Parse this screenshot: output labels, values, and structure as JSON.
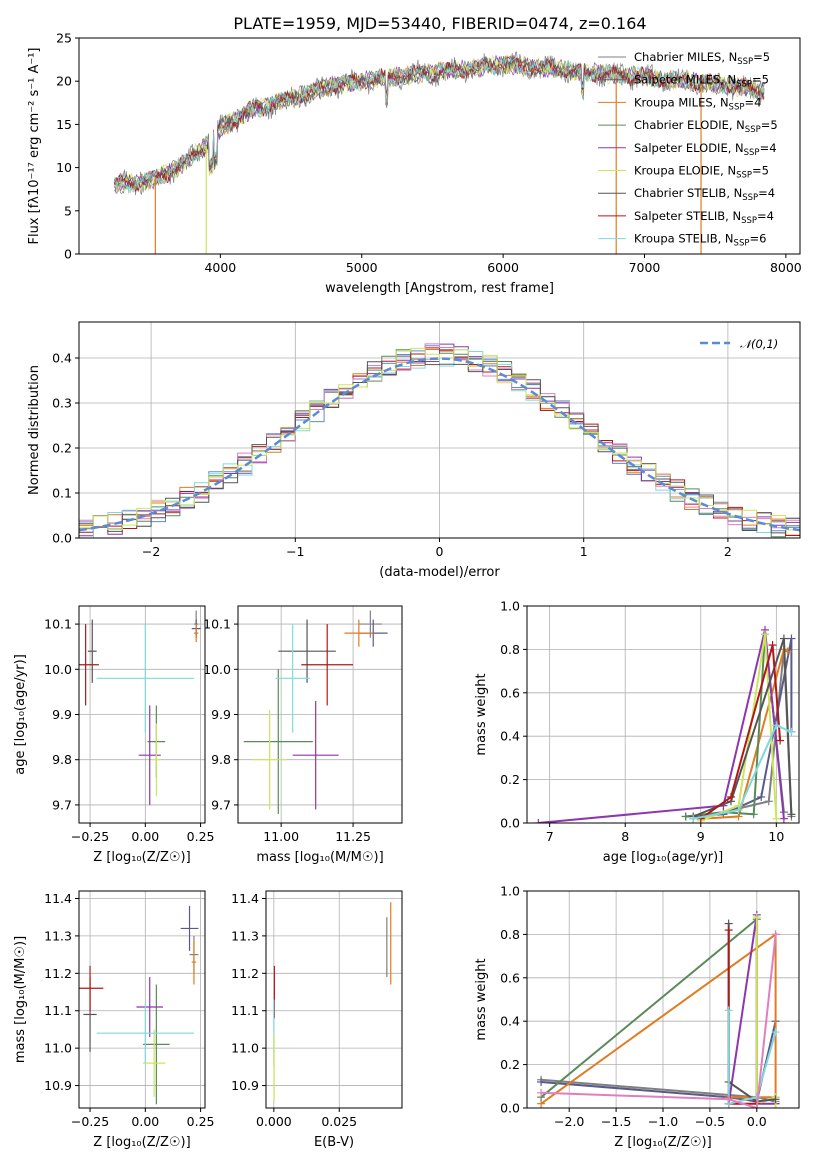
{
  "figure": {
    "title": "PLATE=1959, MJD=53440, FIBERID=0474, z=0.164"
  },
  "series": [
    {
      "name": "Chabrier MILES",
      "nssp": 5,
      "color": "#808080"
    },
    {
      "name": "Salpeter MILES",
      "nssp": 5,
      "color": "#5a5a8a"
    },
    {
      "name": "Kroupa MILES",
      "nssp": 4,
      "color": "#e07b20"
    },
    {
      "name": "Chabrier ELODIE",
      "nssp": 5,
      "color": "#5a8a5a"
    },
    {
      "name": "Salpeter ELODIE",
      "nssp": 4,
      "color": "#8e35b0"
    },
    {
      "name": "Kroupa ELODIE",
      "nssp": 5,
      "color": "#cde55a"
    },
    {
      "name": "Chabrier STELIB",
      "nssp": 4,
      "color": "#555555"
    },
    {
      "name": "Salpeter STELIB",
      "nssp": 4,
      "color": "#b01818"
    },
    {
      "name": "Kroupa STELIB",
      "nssp": 6,
      "color": "#7ed9dc"
    }
  ],
  "chart_data": [
    {
      "id": "spectrum",
      "type": "line",
      "xlabel": "wavelength [Angstrom, rest frame]",
      "ylabel": "Flux [fλ10⁻¹⁷ erg cm⁻² s⁻¹ A⁻¹]",
      "xlim": [
        3000,
        8100
      ],
      "ylim": [
        0,
        25
      ],
      "xticks": [
        4000,
        5000,
        6000,
        7000,
        8000
      ],
      "yticks": [
        0,
        5,
        10,
        15,
        20,
        25
      ],
      "continuum": {
        "x": [
          3250,
          3500,
          3700,
          3900,
          4000,
          4200,
          4500,
          4800,
          5000,
          5200,
          5500,
          5800,
          6000,
          6300,
          6600,
          7000,
          7300,
          7600,
          7800
        ],
        "y": [
          8.0,
          8.5,
          10.0,
          12.5,
          14.5,
          16.5,
          18.0,
          19.5,
          20.0,
          20.5,
          21.0,
          21.5,
          22.0,
          21.5,
          21.0,
          20.5,
          20.0,
          19.5,
          19.0
        ]
      },
      "model_dropouts": [
        {
          "series": "Kroupa MILES",
          "x": 3540
        },
        {
          "series": "Kroupa ELODIE",
          "x": 3900
        },
        {
          "series": "Kroupa MILES",
          "x": 6800
        },
        {
          "series": "Kroupa MILES",
          "x": 7400
        }
      ]
    },
    {
      "id": "residuals",
      "type": "histogram",
      "xlabel": "(data-model)/error",
      "ylabel": "Normed distribution",
      "xlim": [
        -2.5,
        2.5
      ],
      "ylim": [
        0,
        0.48
      ],
      "xticks": [
        -2,
        -1,
        0,
        1,
        2
      ],
      "yticks": [
        0.0,
        0.1,
        0.2,
        0.3,
        0.4
      ],
      "bin_width": 0.1,
      "reference": {
        "name": "𝒩(0,1)",
        "mean": 0,
        "sigma": 1,
        "color": "#5b8bd6"
      }
    },
    {
      "id": "age_vs_Z",
      "type": "errorbar",
      "xlabel": "Z [log₁₀(Z/Z☉)]",
      "ylabel": "age  [log₁₀(age/yr)]",
      "xlim": [
        -0.3,
        0.27
      ],
      "ylim": [
        9.66,
        10.14
      ],
      "xticks": [
        -0.25,
        0.0,
        0.25
      ],
      "yticks": [
        9.7,
        9.8,
        9.9,
        10.0,
        10.1
      ],
      "points": [
        {
          "series": "Chabrier MILES",
          "x": 0.23,
          "xerr": 0.01,
          "y": 10.1,
          "yerr": 0.03
        },
        {
          "series": "Salpeter MILES",
          "x": 0.23,
          "xerr": 0.02,
          "y": 10.09,
          "yerr": 0.02
        },
        {
          "series": "Kroupa MILES",
          "x": 0.23,
          "xerr": 0.01,
          "y": 10.08,
          "yerr": 0.02
        },
        {
          "series": "Chabrier ELODIE",
          "x": 0.05,
          "xerr": 0.04,
          "y": 9.84,
          "yerr": 0.08
        },
        {
          "series": "Salpeter ELODIE",
          "x": 0.02,
          "xerr": 0.05,
          "y": 9.81,
          "yerr": 0.11
        },
        {
          "series": "Kroupa ELODIE",
          "x": 0.05,
          "xerr": 0.02,
          "y": 9.8,
          "yerr": 0.08
        },
        {
          "series": "Chabrier STELIB",
          "x": -0.24,
          "xerr": 0.02,
          "y": 10.04,
          "yerr": 0.07
        },
        {
          "series": "Salpeter STELIB",
          "x": -0.27,
          "xerr": 0.06,
          "y": 10.01,
          "yerr": 0.09
        },
        {
          "series": "Kroupa STELIB",
          "x": 0.0,
          "xerr": 0.22,
          "y": 9.98,
          "yerr": 0.12
        }
      ]
    },
    {
      "id": "age_vs_mass",
      "type": "errorbar",
      "xlabel": "mass [log₁₀(M/M☉)]",
      "ylabel": "",
      "xlim": [
        10.85,
        11.42
      ],
      "ylim": [
        9.66,
        10.14
      ],
      "xticks": [
        11.0,
        11.25
      ],
      "yticks": [
        9.7,
        9.8,
        9.9,
        10.0,
        10.1
      ],
      "points": [
        {
          "series": "Chabrier MILES",
          "x": 11.31,
          "xerr": 0.04,
          "y": 10.1,
          "yerr": 0.03
        },
        {
          "series": "Salpeter MILES",
          "x": 11.32,
          "xerr": 0.05,
          "y": 10.08,
          "yerr": 0.03
        },
        {
          "series": "Kroupa MILES",
          "x": 11.27,
          "xerr": 0.05,
          "y": 10.08,
          "yerr": 0.03
        },
        {
          "series": "Chabrier ELODIE",
          "x": 10.99,
          "xerr": 0.12,
          "y": 9.84,
          "yerr": 0.16
        },
        {
          "series": "Salpeter ELODIE",
          "x": 11.12,
          "xerr": 0.08,
          "y": 9.81,
          "yerr": 0.12
        },
        {
          "series": "Kroupa ELODIE",
          "x": 10.96,
          "xerr": 0.06,
          "y": 9.8,
          "yerr": 0.11
        },
        {
          "series": "Chabrier STELIB",
          "x": 11.09,
          "xerr": 0.1,
          "y": 10.04,
          "yerr": 0.07
        },
        {
          "series": "Salpeter STELIB",
          "x": 11.16,
          "xerr": 0.09,
          "y": 10.01,
          "yerr": 0.09
        },
        {
          "series": "Kroupa STELIB",
          "x": 11.04,
          "xerr": 0.06,
          "y": 9.98,
          "yerr": 0.12
        }
      ]
    },
    {
      "id": "weight_vs_age",
      "type": "line",
      "xlabel": "age  [log₁₀(age/yr)]",
      "ylabel": "mass weight",
      "xlim": [
        6.7,
        10.3
      ],
      "ylim": [
        0,
        1.0
      ],
      "xticks": [
        7,
        8,
        9,
        10
      ],
      "yticks": [
        0.0,
        0.2,
        0.4,
        0.6,
        0.8,
        1.0
      ],
      "lines": [
        {
          "series": "Chabrier MILES",
          "x": [
            8.9,
            9.3,
            9.9,
            10.1,
            10.2
          ],
          "y": [
            0.02,
            0.05,
            0.1,
            0.8,
            0.03
          ]
        },
        {
          "series": "Salpeter MILES",
          "x": [
            8.8,
            9.3,
            9.8,
            10.2,
            10.2
          ],
          "y": [
            0.03,
            0.04,
            0.12,
            0.85,
            0.42
          ]
        },
        {
          "series": "Kroupa MILES",
          "x": [
            9.0,
            9.5,
            10.1,
            10.15
          ],
          "y": [
            0.02,
            0.03,
            0.8,
            0.79
          ]
        },
        {
          "series": "Chabrier ELODIE",
          "x": [
            8.8,
            9.3,
            9.7,
            9.85,
            10.1
          ],
          "y": [
            0.03,
            0.05,
            0.04,
            0.87,
            0.05
          ]
        },
        {
          "series": "Salpeter ELODIE",
          "x": [
            6.85,
            9.3,
            9.85,
            10.1
          ],
          "y": [
            0.0,
            0.08,
            0.89,
            0.02
          ]
        },
        {
          "series": "Kroupa ELODIE",
          "x": [
            9.0,
            9.5,
            9.85,
            10.0
          ],
          "y": [
            0.01,
            0.08,
            0.87,
            0.02
          ]
        },
        {
          "series": "Chabrier STELIB",
          "x": [
            8.9,
            9.4,
            10.1,
            10.2
          ],
          "y": [
            0.03,
            0.1,
            0.85,
            0.04
          ]
        },
        {
          "series": "Salpeter STELIB",
          "x": [
            9.0,
            9.4,
            9.95,
            10.05
          ],
          "y": [
            0.02,
            0.12,
            0.82,
            0.38
          ]
        },
        {
          "series": "Kroupa STELIB",
          "x": [
            8.9,
            9.5,
            10.0,
            10.2
          ],
          "y": [
            0.02,
            0.06,
            0.45,
            0.42
          ]
        }
      ]
    },
    {
      "id": "mass_vs_Z",
      "type": "errorbar",
      "xlabel": "Z [log₁₀(Z/Z☉)]",
      "ylabel": "mass [log₁₀(M/M☉)]",
      "xlim": [
        -0.3,
        0.27
      ],
      "ylim": [
        10.84,
        11.42
      ],
      "xticks": [
        -0.25,
        0.0,
        0.25
      ],
      "yticks": [
        10.9,
        11.0,
        11.1,
        11.2,
        11.3,
        11.4
      ],
      "points": [
        {
          "series": "Chabrier MILES",
          "x": 0.22,
          "xerr": 0.02,
          "y": 11.25,
          "yerr": 0.05
        },
        {
          "series": "Salpeter MILES",
          "x": 0.2,
          "xerr": 0.04,
          "y": 11.32,
          "yerr": 0.06
        },
        {
          "series": "Kroupa MILES",
          "x": 0.22,
          "xerr": 0.01,
          "y": 11.23,
          "yerr": 0.06
        },
        {
          "series": "Chabrier ELODIE",
          "x": 0.05,
          "xerr": 0.06,
          "y": 11.01,
          "yerr": 0.16
        },
        {
          "series": "Salpeter ELODIE",
          "x": 0.02,
          "xerr": 0.06,
          "y": 11.11,
          "yerr": 0.08
        },
        {
          "series": "Kroupa ELODIE",
          "x": 0.04,
          "xerr": 0.05,
          "y": 10.96,
          "yerr": 0.09
        },
        {
          "series": "Chabrier STELIB",
          "x": -0.25,
          "xerr": 0.03,
          "y": 11.09,
          "yerr": 0.1
        },
        {
          "series": "Salpeter STELIB",
          "x": -0.25,
          "xerr": 0.06,
          "y": 11.16,
          "yerr": 0.06
        },
        {
          "series": "Kroupa STELIB",
          "x": 0.0,
          "xerr": 0.22,
          "y": 11.04,
          "yerr": 0.08
        }
      ]
    },
    {
      "id": "mass_vs_ebv",
      "type": "errorbar",
      "xlabel": "E(B-V)",
      "ylabel": "",
      "xlim": [
        -0.003,
        0.049
      ],
      "ylim": [
        10.84,
        11.42
      ],
      "xticks": [
        0.0,
        0.025
      ],
      "xtick_labels": [
        "0.000",
        "0.025"
      ],
      "yticks": [
        10.9,
        11.0,
        11.1,
        11.2,
        11.3,
        11.4
      ],
      "points": [
        {
          "series": "Chabrier MILES",
          "x": 0.0432,
          "xerr": 0,
          "y": 11.27,
          "yerr": 0.08
        },
        {
          "series": "Kroupa MILES",
          "x": 0.0447,
          "xerr": 0,
          "y": 11.28,
          "yerr": 0.11
        },
        {
          "series": "Salpeter STELIB",
          "x": 0.0002,
          "xerr": 0,
          "y": 11.15,
          "yerr": 0.07
        },
        {
          "series": "Kroupa STELIB",
          "x": 0.0,
          "xerr": 0,
          "y": 11.04,
          "yerr": 0.09
        },
        {
          "series": "Kroupa ELODIE",
          "x": 0.0001,
          "xerr": 0,
          "y": 10.95,
          "yerr": 0.09
        }
      ]
    },
    {
      "id": "weight_vs_Z",
      "type": "line",
      "xlabel": "Z [log₁₀(Z/Z☉)]",
      "ylabel": "mass weight",
      "xlim": [
        -2.45,
        0.45
      ],
      "ylim": [
        0,
        1.0
      ],
      "xticks": [
        -2.0,
        -1.5,
        -1.0,
        -0.5,
        0.0
      ],
      "yticks": [
        0.0,
        0.2,
        0.4,
        0.6,
        0.8,
        1.0
      ],
      "lines": [
        {
          "series": "Chabrier MILES",
          "x": [
            -2.3,
            0.0,
            0.2,
            0.2
          ],
          "y": [
            0.13,
            0.05,
            0.03,
            0.02
          ]
        },
        {
          "series": "Salpeter MILES",
          "x": [
            -2.3,
            -0.3,
            0.0,
            0.2
          ],
          "y": [
            0.12,
            0.05,
            0.03,
            0.4
          ]
        },
        {
          "series": "Kroupa MILES",
          "x": [
            -2.3,
            0.2,
            0.2,
            -0.3
          ],
          "y": [
            0.02,
            0.8,
            0.05,
            0.05
          ]
        },
        {
          "series": "Chabrier ELODIE",
          "x": [
            -2.3,
            0.0,
            0.0,
            0.2
          ],
          "y": [
            0.05,
            0.87,
            0.02,
            0.05
          ]
        },
        {
          "series": "Salpeter ELODIE",
          "x": [
            -0.3,
            0.0,
            0.0,
            0.2
          ],
          "y": [
            0.02,
            0.89,
            0.02,
            0.02
          ]
        },
        {
          "series": "Kroupa ELODIE",
          "x": [
            0.0,
            0.0,
            0.2,
            0.2
          ],
          "y": [
            0.88,
            0.02,
            0.05,
            0.0
          ]
        },
        {
          "series": "Chabrier STELIB",
          "x": [
            -0.3,
            -0.3,
            0.0,
            0.2
          ],
          "y": [
            0.85,
            0.12,
            0.03,
            0.04
          ]
        },
        {
          "series": "Salpeter STELIB",
          "x": [
            -0.3,
            -0.3,
            0.0,
            0.0
          ],
          "y": [
            0.82,
            0.02,
            0.02,
            0.05
          ]
        },
        {
          "series": "Kroupa STELIB",
          "x": [
            -0.3,
            -0.3,
            0.0,
            0.2
          ],
          "y": [
            0.45,
            0.02,
            0.05,
            0.35
          ]
        }
      ],
      "extra_lines": [
        {
          "color": "#e07fc0",
          "x": [
            -2.3,
            -0.3,
            0.0,
            0.2
          ],
          "y": [
            0.07,
            0.04,
            0.0,
            0.8
          ]
        }
      ]
    }
  ]
}
